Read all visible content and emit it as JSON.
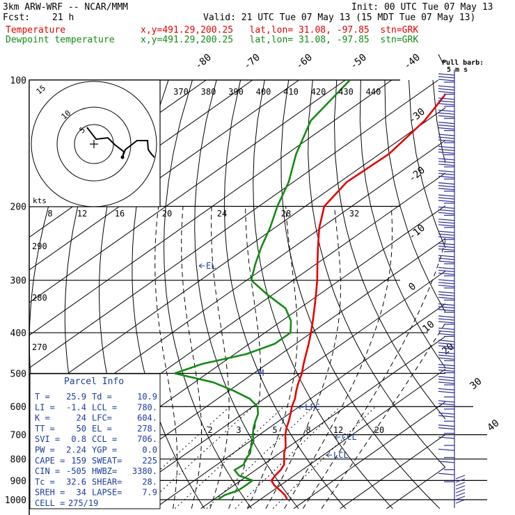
{
  "header": {
    "model": "3km ARW-WRF -- NCAR/MMM",
    "init": "Init: 00 UTC Tue 07 May 13",
    "fcst_label": "Fcst:",
    "fcst_value": "21 h",
    "valid": "Valid: 21 UTC Tue 07 May 13 (15 MDT Tue 07 May 13)",
    "temp_label": "Temperature",
    "dew_label": "Dewpoint temperature",
    "temp_loc": "x,y=491.29,200.25   lat,lon= 31.08, -97.85  stn=GRK",
    "dew_loc": "x,y=491.29,200.25   lat,lon= 31.08, -97.85  stn=GRK"
  },
  "colors": {
    "temperature": "#e60000",
    "dewpoint": "#138a13",
    "parcel_panel": "#1a3c9e",
    "wind_barbs": "#2a2a9c"
  },
  "full_barb_label": [
    "Full barb:",
    "5 m s"
  ],
  "parcel_info": {
    "title": "Parcel Info",
    "rows": [
      [
        "T  =",
        "25.9",
        "Td =",
        "10.9"
      ],
      [
        "LI =",
        "-1.4",
        "LCL =",
        "780."
      ],
      [
        "K  =",
        "24",
        "LFC=",
        "604."
      ],
      [
        "TT =",
        "50",
        "EL =",
        "278."
      ],
      [
        "SVI =",
        "0.8",
        "CCL =",
        "706."
      ],
      [
        "PW =",
        "2.24",
        "YGP =",
        "0.0"
      ],
      [
        "CAPE =",
        "159",
        "SWEAT=",
        "225"
      ],
      [
        "CIN =",
        "-505",
        "HWBZ=",
        "3380."
      ],
      [
        "Tc =",
        "32.6",
        "SHEAR=",
        "28."
      ],
      [
        "SREH =",
        "34",
        "LAPSE=",
        "7.9"
      ],
      [
        "CELL =",
        "275/19",
        "",
        ""
      ]
    ]
  },
  "chart_data": {
    "type": "line",
    "title": "",
    "pressure_levels": [
      100,
      200,
      300,
      400,
      500,
      600,
      700,
      800,
      900,
      1000
    ],
    "isotherm_labels": [
      "-80",
      "-70",
      "-60",
      "-50",
      "-40",
      "-30",
      "-20",
      "-10",
      "0",
      "10",
      "20",
      "30",
      "40"
    ],
    "theta_e_labels": [
      "370",
      "380",
      "390",
      "400",
      "410",
      "420",
      "430",
      "440"
    ],
    "theta_labels": [
      "290",
      "280",
      "270"
    ],
    "mixing_ratio_labels": [
      "2",
      "3",
      "5",
      "8",
      "12",
      "20"
    ],
    "parcel_markers": [
      "EL",
      "LFC",
      "CCL",
      "LCL",
      "M"
    ],
    "series": [
      {
        "name": "Temperature",
        "points": [
          [
            1000,
            25.9
          ],
          [
            975,
            24.0
          ],
          [
            950,
            21.5
          ],
          [
            925,
            18.8
          ],
          [
            900,
            16.6
          ],
          [
            875,
            15.9
          ],
          [
            850,
            15.4
          ],
          [
            825,
            14.5
          ],
          [
            800,
            12.8
          ],
          [
            775,
            11.0
          ],
          [
            750,
            9.5
          ],
          [
            725,
            7.6
          ],
          [
            700,
            5.6
          ],
          [
            675,
            3.8
          ],
          [
            650,
            2.2
          ],
          [
            625,
            0.4
          ],
          [
            600,
            -1.6
          ],
          [
            575,
            -3.3
          ],
          [
            550,
            -5.5
          ],
          [
            525,
            -7.6
          ],
          [
            500,
            -9.6
          ],
          [
            475,
            -12.1
          ],
          [
            450,
            -14.6
          ],
          [
            425,
            -17.2
          ],
          [
            400,
            -20.1
          ],
          [
            375,
            -23.3
          ],
          [
            350,
            -26.8
          ],
          [
            325,
            -30.6
          ],
          [
            300,
            -34.8
          ],
          [
            275,
            -39.6
          ],
          [
            250,
            -44.8
          ],
          [
            225,
            -50.4
          ],
          [
            200,
            -55.9
          ],
          [
            175,
            -58.5
          ],
          [
            150,
            -58.0
          ],
          [
            125,
            -60.5
          ],
          [
            100,
            -66.0
          ]
        ]
      },
      {
        "name": "Dewpoint temperature",
        "points": [
          [
            1000,
            10.9
          ],
          [
            975,
            11.0
          ],
          [
            950,
            12.5
          ],
          [
            925,
            12.6
          ],
          [
            900,
            12.5
          ],
          [
            875,
            8.0
          ],
          [
            850,
            5.5
          ],
          [
            825,
            5.8
          ],
          [
            800,
            4.5
          ],
          [
            775,
            3.7
          ],
          [
            750,
            2.0
          ],
          [
            725,
            0.7
          ],
          [
            700,
            -1.4
          ],
          [
            675,
            -3.3
          ],
          [
            650,
            -5.0
          ],
          [
            625,
            -6.6
          ],
          [
            600,
            -9.0
          ],
          [
            575,
            -13.0
          ],
          [
            550,
            -19.0
          ],
          [
            525,
            -26.0
          ],
          [
            500,
            -37.0
          ],
          [
            475,
            -34.0
          ],
          [
            450,
            -27.5
          ],
          [
            425,
            -24.5
          ],
          [
            400,
            -24.5
          ],
          [
            375,
            -28.0
          ],
          [
            350,
            -33.0
          ],
          [
            325,
            -41.0
          ],
          [
            300,
            -49.0
          ],
          [
            275,
            -53.0
          ],
          [
            250,
            -57.0
          ],
          [
            225,
            -61.0
          ],
          [
            200,
            -66.0
          ],
          [
            175,
            -71.0
          ],
          [
            150,
            -78.0
          ],
          [
            125,
            -85.0
          ],
          [
            100,
            -89.0
          ]
        ]
      }
    ],
    "hodograph": {
      "ring_labels": [
        "5",
        "10",
        "15"
      ],
      "speed_labels": [
        "8",
        "12",
        "16",
        "20",
        "24",
        "28",
        "32"
      ],
      "units": "kts"
    }
  }
}
